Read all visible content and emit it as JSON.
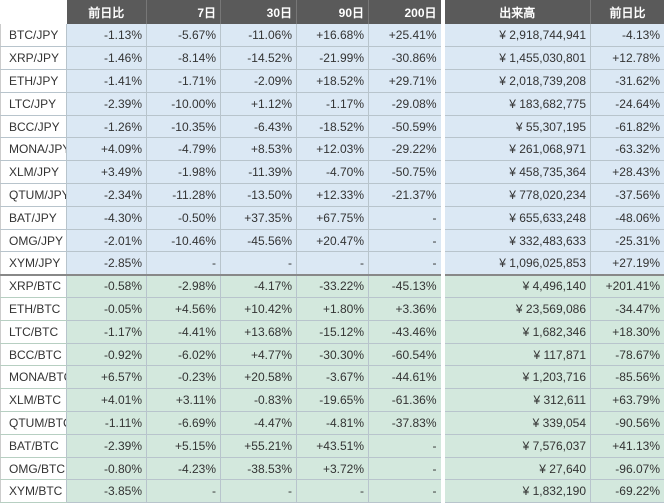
{
  "table": {
    "header": [
      "前日比",
      "7日",
      "30日",
      "90日",
      "200日",
      "出来高",
      "前日比"
    ],
    "sections": [
      {
        "rows": [
          [
            "BTC/JPY",
            "-1.13%",
            "-5.67%",
            "-11.06%",
            "+16.68%",
            "+25.41%",
            "¥ 2,918,744,941",
            "-4.13%"
          ],
          [
            "XRP/JPY",
            "-1.46%",
            "-8.14%",
            "-14.52%",
            "-21.99%",
            "-30.86%",
            "¥ 1,455,030,801",
            "+12.78%"
          ],
          [
            "ETH/JPY",
            "-1.41%",
            "-1.71%",
            "-2.09%",
            "+18.52%",
            "+29.71%",
            "¥ 2,018,739,208",
            "-31.62%"
          ],
          [
            "LTC/JPY",
            "-2.39%",
            "-10.00%",
            "+1.12%",
            "-1.17%",
            "-29.08%",
            "¥ 183,682,775",
            "-24.64%"
          ],
          [
            "BCC/JPY",
            "-1.26%",
            "-10.35%",
            "-6.43%",
            "-18.52%",
            "-50.59%",
            "¥ 55,307,195",
            "-61.82%"
          ],
          [
            "MONA/JPY",
            "+4.09%",
            "-4.79%",
            "+8.53%",
            "+12.03%",
            "-29.22%",
            "¥ 261,068,971",
            "-63.32%"
          ],
          [
            "XLM/JPY",
            "+3.49%",
            "-1.98%",
            "-11.39%",
            "-4.70%",
            "-50.75%",
            "¥ 458,735,364",
            "+28.43%"
          ],
          [
            "QTUM/JPY",
            "-2.34%",
            "-11.28%",
            "-13.50%",
            "+12.33%",
            "-21.37%",
            "¥ 778,020,234",
            "-37.56%"
          ],
          [
            "BAT/JPY",
            "-4.30%",
            "-0.50%",
            "+37.35%",
            "+67.75%",
            "-",
            "¥ 655,633,248",
            "-48.06%"
          ],
          [
            "OMG/JPY",
            "-2.01%",
            "-10.46%",
            "-45.56%",
            "+20.47%",
            "-",
            "¥ 332,483,633",
            "-25.31%"
          ],
          [
            "XYM/JPY",
            "-2.85%",
            "-",
            "-",
            "-",
            "-",
            "¥ 1,096,025,853",
            "+27.19%"
          ]
        ]
      },
      {
        "rows": [
          [
            "XRP/BTC",
            "-0.58%",
            "-2.98%",
            "-4.17%",
            "-33.22%",
            "-45.13%",
            "¥ 4,496,140",
            "+201.41%"
          ],
          [
            "ETH/BTC",
            "-0.05%",
            "+4.56%",
            "+10.42%",
            "+1.80%",
            "+3.36%",
            "¥ 23,569,086",
            "-34.47%"
          ],
          [
            "LTC/BTC",
            "-1.17%",
            "-4.41%",
            "+13.68%",
            "-15.12%",
            "-43.46%",
            "¥ 1,682,346",
            "+18.30%"
          ],
          [
            "BCC/BTC",
            "-0.92%",
            "-6.02%",
            "+4.77%",
            "-30.30%",
            "-60.54%",
            "¥ 117,871",
            "-78.67%"
          ],
          [
            "MONA/BTC",
            "+6.57%",
            "-0.23%",
            "+20.58%",
            "-3.67%",
            "-44.61%",
            "¥ 1,203,716",
            "-85.56%"
          ],
          [
            "XLM/BTC",
            "+4.01%",
            "+3.11%",
            "-0.83%",
            "-19.65%",
            "-61.36%",
            "¥ 312,611",
            "+63.79%"
          ],
          [
            "QTUM/BTC",
            "-1.11%",
            "-6.69%",
            "-4.47%",
            "-4.81%",
            "-37.83%",
            "¥ 339,054",
            "-90.56%"
          ],
          [
            "BAT/BTC",
            "-2.39%",
            "+5.15%",
            "+55.21%",
            "+43.51%",
            "-",
            "¥ 7,576,037",
            "+41.13%"
          ],
          [
            "OMG/BTC",
            "-0.80%",
            "-4.23%",
            "-38.53%",
            "+3.72%",
            "-",
            "¥ 27,640",
            "-96.07%"
          ],
          [
            "XYM/BTC",
            "-3.85%",
            "-",
            "-",
            "-",
            "-",
            "¥ 1,832,190",
            "-69.22%"
          ]
        ]
      }
    ]
  }
}
